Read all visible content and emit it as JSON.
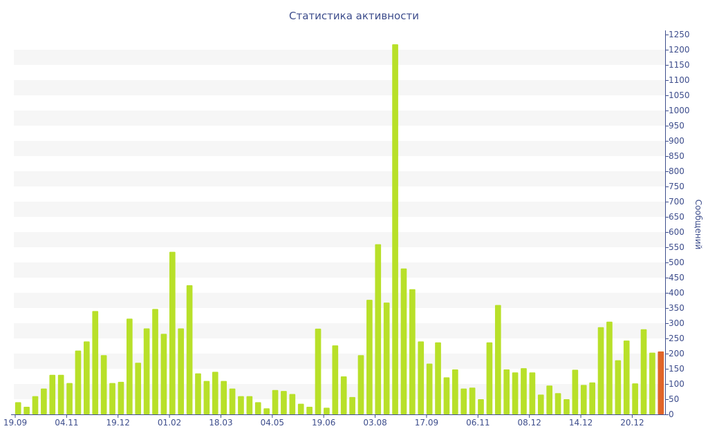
{
  "chart_data": {
    "type": "bar",
    "title": "Статистика активности",
    "ylabel": "Сообщений",
    "xlabel": "",
    "ylim": [
      0,
      1250
    ],
    "yticks": [
      0,
      50,
      100,
      150,
      200,
      250,
      300,
      350,
      400,
      450,
      500,
      550,
      600,
      650,
      700,
      750,
      800,
      850,
      900,
      950,
      1000,
      1050,
      1100,
      1150,
      1200,
      1250
    ],
    "x_tick_labels": [
      {
        "index": 0,
        "label": "19.09"
      },
      {
        "index": 6,
        "label": "04.11"
      },
      {
        "index": 12,
        "label": "19.12"
      },
      {
        "index": 18,
        "label": "01.02"
      },
      {
        "index": 24,
        "label": "18.03"
      },
      {
        "index": 30,
        "label": "04.05"
      },
      {
        "index": 36,
        "label": "19.06"
      },
      {
        "index": 42,
        "label": "03.08"
      },
      {
        "index": 48,
        "label": "17.09"
      },
      {
        "index": 54,
        "label": "06.11"
      },
      {
        "index": 60,
        "label": "08.12"
      },
      {
        "index": 66,
        "label": "14.12"
      },
      {
        "index": 72,
        "label": "20.12"
      }
    ],
    "values": [
      40,
      25,
      60,
      85,
      130,
      130,
      103,
      210,
      240,
      340,
      195,
      103,
      107,
      315,
      170,
      283,
      347,
      265,
      535,
      283,
      425,
      135,
      110,
      140,
      110,
      85,
      60,
      60,
      40,
      20,
      80,
      77,
      67,
      35,
      25,
      282,
      22,
      227,
      125,
      57,
      195,
      377,
      560,
      368,
      1218,
      480,
      412,
      240,
      167,
      237,
      122,
      148,
      85,
      88,
      50,
      237,
      360,
      148,
      138,
      152,
      138,
      65,
      95,
      70,
      50,
      147,
      97,
      105,
      287,
      305,
      178,
      243,
      102,
      280,
      203,
      207
    ],
    "bar_color": "#b8e029",
    "highlight_color": "#e06428",
    "highlight_index": 75,
    "band_color": "#f6f6f6",
    "axis_color": "#3d4d8c"
  }
}
